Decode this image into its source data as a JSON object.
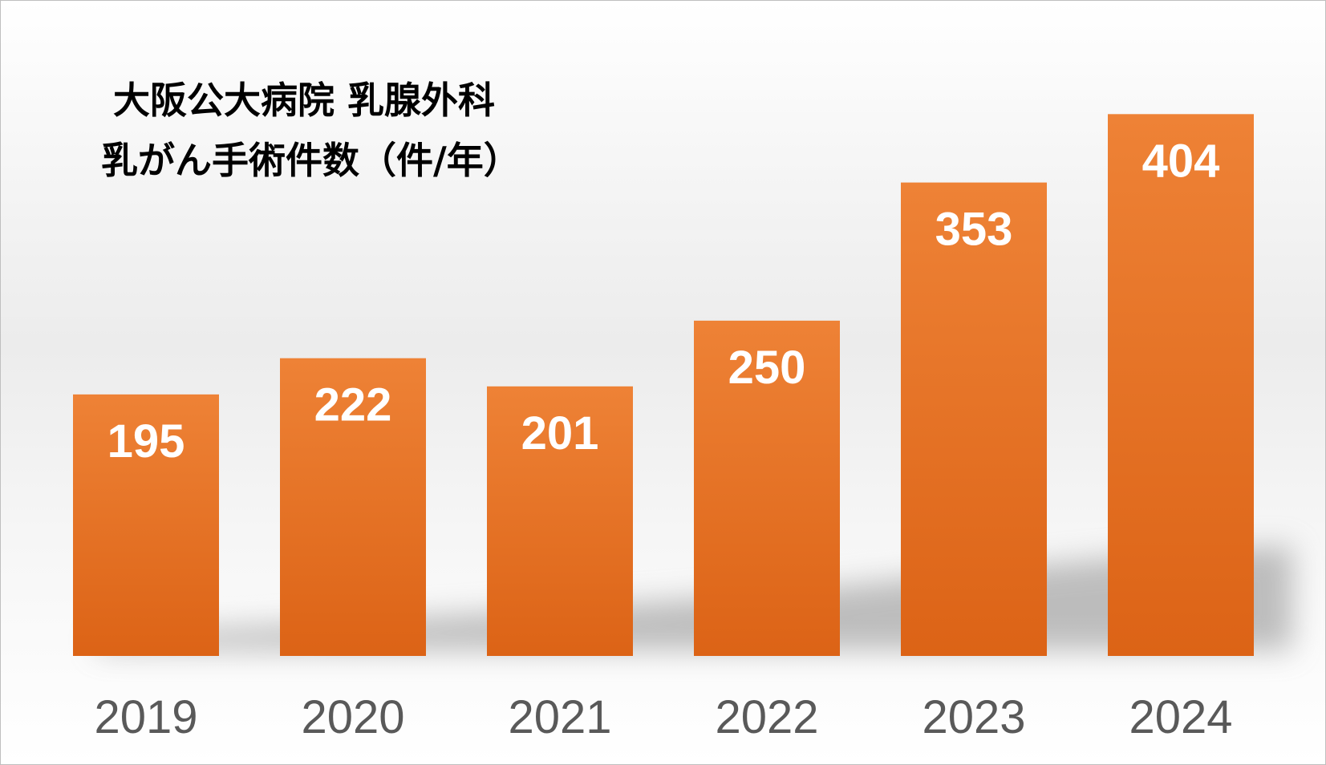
{
  "chart_data": {
    "type": "bar",
    "title_lines": [
      "大阪公大病院 乳腺外科",
      "乳がん手術件数（件/年）"
    ],
    "categories": [
      "2019",
      "2020",
      "2021",
      "2022",
      "2023",
      "2024"
    ],
    "values": [
      195,
      222,
      201,
      250,
      353,
      404
    ],
    "data_labels": [
      "195",
      "222",
      "201",
      "250",
      "353",
      "404"
    ],
    "xlabel": "",
    "ylabel": "",
    "ylim": [
      0,
      475
    ],
    "grid": false,
    "legend": "none",
    "bar_color_top": "#ee8236",
    "bar_color_bottom": "#dc6316",
    "data_label_color": "#ffffff",
    "tick_label_color": "#595959"
  }
}
